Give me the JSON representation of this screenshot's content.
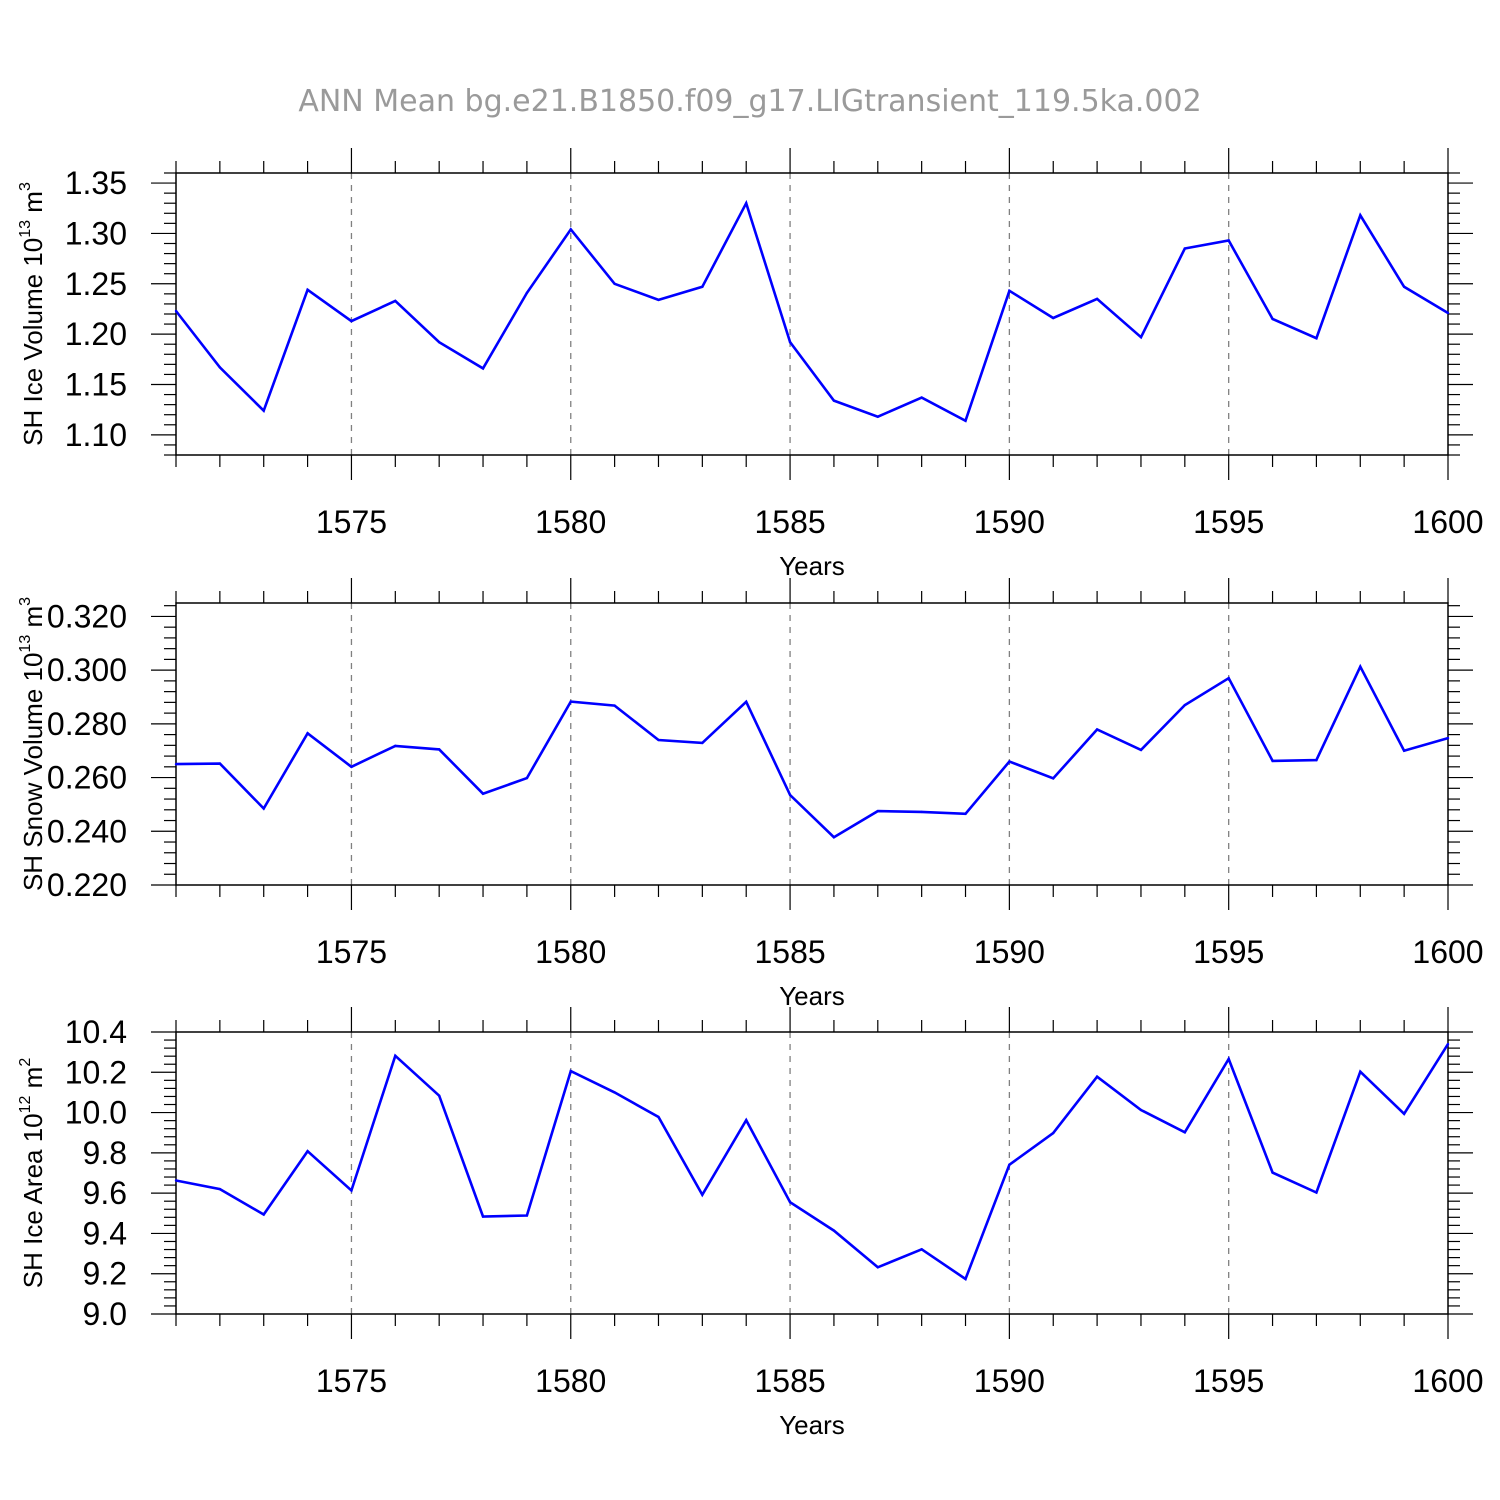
{
  "title": "ANN Mean bg.e21.B1850.f09_g17.LIGtransient_119.5ka.002",
  "colors": {
    "line": "#0000ff",
    "axis": "#000000",
    "grid": "#808080",
    "title": "#9a9a9a"
  },
  "chart_data": [
    {
      "type": "line",
      "xlabel": "Years",
      "ylabel": {
        "text": "SH Ice Volume 10",
        "exp": "13",
        "unit": " m",
        "unit_exp": "3"
      },
      "xlim": [
        1571,
        1600
      ],
      "ylim": [
        1.08,
        1.36
      ],
      "x_ticks": [
        1575,
        1580,
        1585,
        1590,
        1595,
        1600
      ],
      "x_tick_labels": [
        "1575",
        "1580",
        "1585",
        "1590",
        "1595",
        "1600"
      ],
      "y_ticks": [
        1.1,
        1.15,
        1.2,
        1.25,
        1.3,
        1.35
      ],
      "y_tick_labels": [
        "1.10",
        "1.15",
        "1.20",
        "1.25",
        "1.30",
        "1.35"
      ],
      "grid": "vertical dashed at major x ticks",
      "x": [
        1571,
        1572,
        1573,
        1574,
        1575,
        1576,
        1577,
        1578,
        1579,
        1580,
        1581,
        1582,
        1583,
        1584,
        1585,
        1586,
        1587,
        1588,
        1589,
        1590,
        1591,
        1592,
        1593,
        1594,
        1595,
        1596,
        1597,
        1598,
        1599,
        1600
      ],
      "values": [
        1.223,
        1.167,
        1.124,
        1.244,
        1.213,
        1.233,
        1.192,
        1.166,
        1.241,
        1.304,
        1.25,
        1.234,
        1.247,
        1.33,
        1.192,
        1.134,
        1.118,
        1.137,
        1.114,
        1.243,
        1.216,
        1.235,
        1.197,
        1.285,
        1.293,
        1.215,
        1.196,
        1.318,
        1.247,
        1.221
      ]
    },
    {
      "type": "line",
      "xlabel": "Years",
      "ylabel": {
        "text": "SH Snow Volume 10",
        "exp": "13",
        "unit": " m",
        "unit_exp": "3"
      },
      "xlim": [
        1571,
        1600
      ],
      "ylim": [
        0.22,
        0.325
      ],
      "x_ticks": [
        1575,
        1580,
        1585,
        1590,
        1595,
        1600
      ],
      "x_tick_labels": [
        "1575",
        "1580",
        "1585",
        "1590",
        "1595",
        "1600"
      ],
      "y_ticks": [
        0.22,
        0.24,
        0.26,
        0.28,
        0.3,
        0.32
      ],
      "y_tick_labels": [
        "0.220",
        "0.240",
        "0.260",
        "0.280",
        "0.300",
        "0.320"
      ],
      "grid": "vertical dashed at major x ticks",
      "x": [
        1571,
        1572,
        1573,
        1574,
        1575,
        1576,
        1577,
        1578,
        1579,
        1580,
        1581,
        1582,
        1583,
        1584,
        1585,
        1586,
        1587,
        1588,
        1589,
        1590,
        1591,
        1592,
        1593,
        1594,
        1595,
        1596,
        1597,
        1598,
        1599,
        1600
      ],
      "values": [
        0.265,
        0.2652,
        0.2485,
        0.2765,
        0.264,
        0.2718,
        0.2705,
        0.254,
        0.2598,
        0.2883,
        0.2868,
        0.274,
        0.2729,
        0.2882,
        0.2535,
        0.2378,
        0.2475,
        0.2472,
        0.2465,
        0.266,
        0.2597,
        0.2779,
        0.2703,
        0.287,
        0.297,
        0.2662,
        0.2665,
        0.3013,
        0.27,
        0.2747
      ]
    },
    {
      "type": "line",
      "xlabel": "Years",
      "ylabel": {
        "text": "SH Ice Area 10",
        "exp": "12",
        "unit": " m",
        "unit_exp": "2"
      },
      "xlim": [
        1571,
        1600
      ],
      "ylim": [
        9.0,
        10.4
      ],
      "x_ticks": [
        1575,
        1580,
        1585,
        1590,
        1595,
        1600
      ],
      "x_tick_labels": [
        "1575",
        "1580",
        "1585",
        "1590",
        "1595",
        "1600"
      ],
      "y_ticks": [
        9.0,
        9.2,
        9.4,
        9.6,
        9.8,
        10.0,
        10.2,
        10.4
      ],
      "y_tick_labels": [
        "9.0",
        "9.2",
        "9.4",
        "9.6",
        "9.8",
        "10.0",
        "10.2",
        "10.4"
      ],
      "grid": "vertical dashed at major x ticks",
      "x": [
        1571,
        1572,
        1573,
        1574,
        1575,
        1576,
        1577,
        1578,
        1579,
        1580,
        1581,
        1582,
        1583,
        1584,
        1585,
        1586,
        1587,
        1588,
        1589,
        1590,
        1591,
        1592,
        1593,
        1594,
        1595,
        1596,
        1597,
        1598,
        1599,
        1600
      ],
      "values": [
        9.663,
        9.62,
        9.494,
        9.808,
        9.613,
        10.282,
        10.084,
        9.484,
        9.489,
        10.206,
        10.1,
        9.978,
        9.592,
        9.962,
        9.555,
        9.414,
        9.232,
        9.321,
        9.174,
        9.741,
        9.898,
        10.178,
        10.013,
        9.902,
        10.266,
        9.702,
        9.603,
        10.203,
        9.994,
        10.34
      ]
    }
  ]
}
